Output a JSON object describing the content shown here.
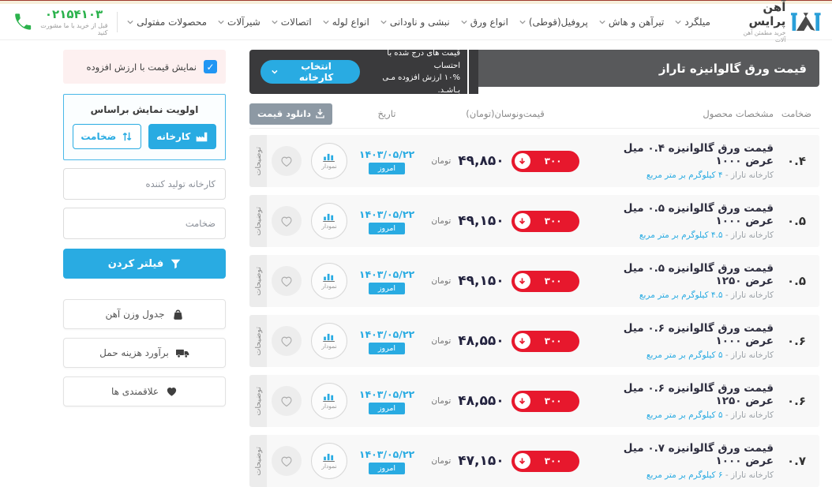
{
  "header": {
    "logo": {
      "title": "آهن پرایس",
      "subtitle": "خرید مطمئن آهن آلات"
    },
    "nav": [
      {
        "label": "میلگرد"
      },
      {
        "label": "تیرآهن و هاش"
      },
      {
        "label": "پروفیل(قوطی)"
      },
      {
        "label": "انواع ورق"
      },
      {
        "label": "نبشی و ناودانی"
      },
      {
        "label": "انواع لوله"
      },
      {
        "label": "اتصالات"
      },
      {
        "label": "شیرآلات"
      },
      {
        "label": "محصولات مفتولی"
      }
    ],
    "phone": {
      "number": "۰۲۱۵۴۱۰۳",
      "note": "قبل از خرید با ما مشورت کنید"
    }
  },
  "titlebar": {
    "title": "قیمت ورق گالوانیزه تاراز",
    "vat_note_line1": "قیمت های درج شده با احتساب",
    "vat_note_line2": "۱۰% ارزش افزوده مـی بـاشـد.",
    "select_factory_label": "انتخاب کارخانه"
  },
  "table": {
    "download_label": "دانلود قیمت",
    "headers": {
      "thickness": "ضخامت",
      "specs": "مشخصات محصول",
      "price": "قیمت‌و‌نوسان(تومان)",
      "date": "تاریخ"
    },
    "currency_label": "تومان",
    "today_label": "امروز",
    "chart_label": "نمودار",
    "details_label": "توضیحات",
    "rows": [
      {
        "thickness": "۰.۴",
        "product": "قیمت ورق گالوانیزه ۰.۴ میل عرض ۱۰۰۰",
        "factory": "کارخانه تاراز - ",
        "weight": "۴ کیلوگرم بر متر مربع",
        "change": "۳۰۰",
        "price": "۴۹,۸۵۰",
        "date": "۱۴۰۳/۰۵/۲۲"
      },
      {
        "thickness": "۰.۵",
        "product": "قیمت ورق گالوانیزه ۰.۵ میل عرض ۱۰۰۰",
        "factory": "کارخانه تاراز - ",
        "weight": "۴.۵ کیلوگرم بر متر مربع",
        "change": "۳۰۰",
        "price": "۴۹,۱۵۰",
        "date": "۱۴۰۳/۰۵/۲۲"
      },
      {
        "thickness": "۰.۵",
        "product": "قیمت ورق گالوانیزه ۰.۵ میل عرض ۱۲۵۰",
        "factory": "کارخانه تاراز - ",
        "weight": "۴.۵ کیلوگرم بر متر مربع",
        "change": "۳۰۰",
        "price": "۴۹,۱۵۰",
        "date": "۱۴۰۳/۰۵/۲۲"
      },
      {
        "thickness": "۰.۶",
        "product": "قیمت ورق گالوانیزه ۰.۶ میل عرض ۱۰۰۰",
        "factory": "کارخانه تاراز - ",
        "weight": "۵ کیلوگرم بر متر مربع",
        "change": "۳۰۰",
        "price": "۴۸,۵۵۰",
        "date": "۱۴۰۳/۰۵/۲۲"
      },
      {
        "thickness": "۰.۶",
        "product": "قیمت ورق گالوانیزه ۰.۶ میل عرض ۱۲۵۰",
        "factory": "کارخانه تاراز - ",
        "weight": "۵ کیلوگرم بر متر مربع",
        "change": "۳۰۰",
        "price": "۴۸,۵۵۰",
        "date": "۱۴۰۳/۰۵/۲۲"
      },
      {
        "thickness": "۰.۷",
        "product": "قیمت ورق گالوانیزه ۰.۷ میل عرض ۱۰۰۰",
        "factory": "کارخانه تاراز - ",
        "weight": "۶ کیلوگرم بر متر مربع",
        "change": "۳۰۰",
        "price": "۴۷,۱۵۰",
        "date": "۱۴۰۳/۰۵/۲۲"
      }
    ]
  },
  "sidebar": {
    "vat_toggle_label": "نمایش قیمت با ارزش افزوده",
    "priority_title": "اولویت نمایش براساس",
    "factory_button": "کارخانه",
    "thickness_button": "ضخامت",
    "factory_placeholder": "کارخانه تولید کننده",
    "thickness_placeholder": "ضخامت",
    "filter_button": "فیلتر کردن",
    "links": [
      {
        "label": "جدول وزن آهن"
      },
      {
        "label": "برآورد هزینه حمل"
      },
      {
        "label": "علاقمندی ها"
      }
    ]
  },
  "colors": {
    "accent_blue": "#29abe2",
    "checkbox_blue": "#2196f3",
    "badge_red": "#e7182d",
    "phone_green": "#2bb24c",
    "titlebar_gray": "#58595b",
    "vat_block_dark": "#3a3a3c",
    "row_bg": "#f8f8f8"
  }
}
